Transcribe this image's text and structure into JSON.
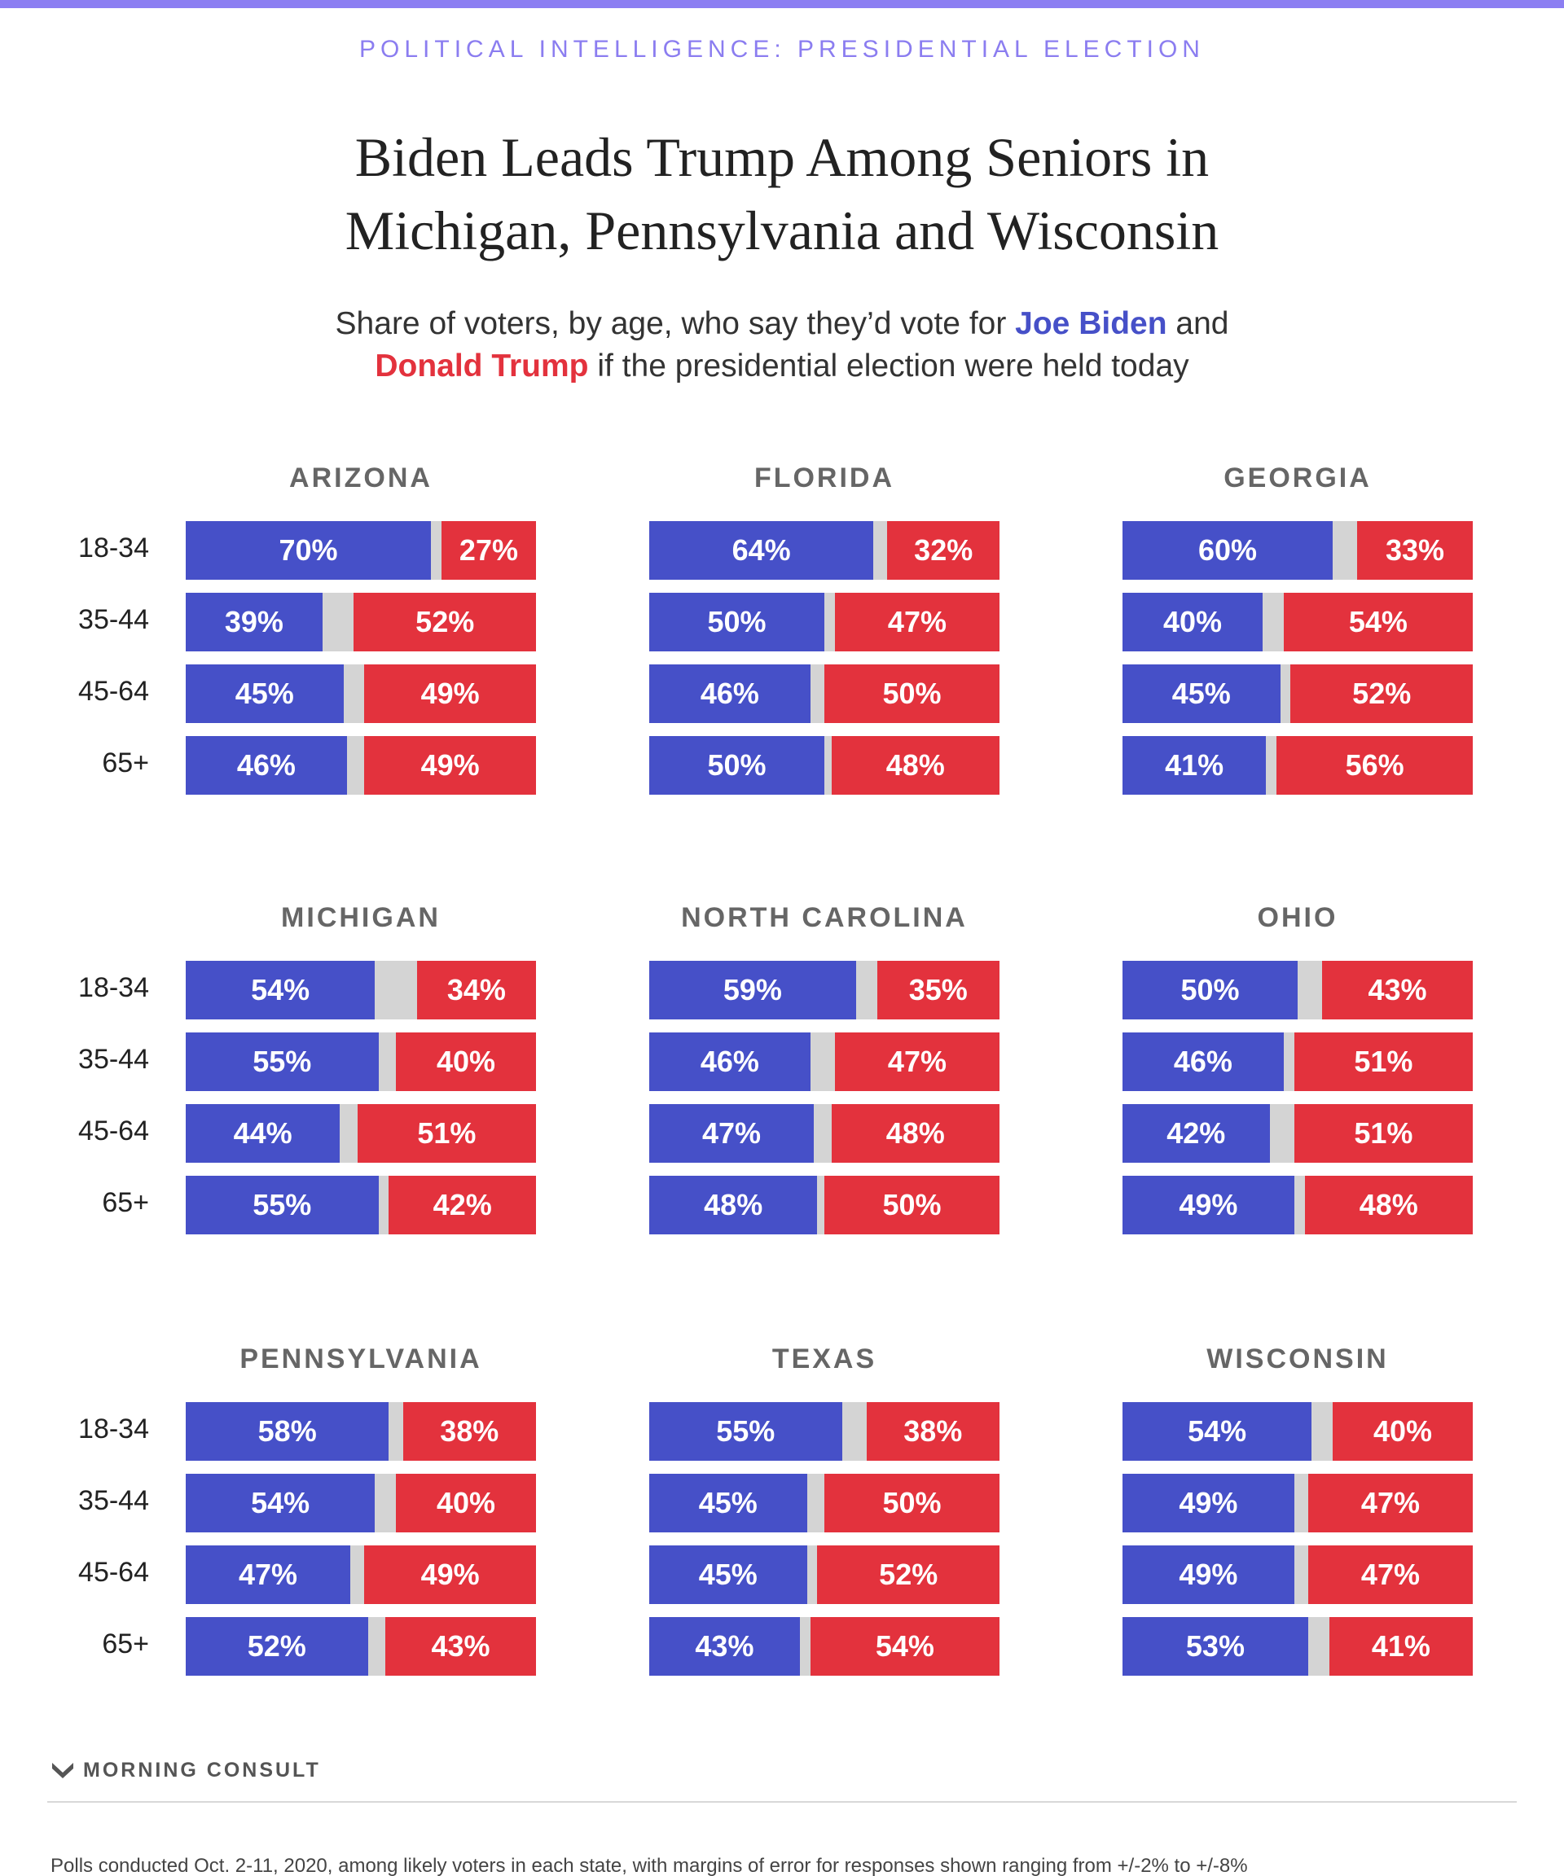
{
  "kicker": "POLITICAL INTELLIGENCE: PRESIDENTIAL ELECTION",
  "title_lines": [
    "Biden Leads Trump Among Seniors in",
    "Michigan, Pennsylvania and Wisconsin"
  ],
  "subtitle": {
    "part1": "Share of voters, by age, who say they’d vote for ",
    "biden": "Joe Biden",
    "part2": " and",
    "trump": "Donald Trump",
    "part3": " if the presidential election were held today"
  },
  "colors": {
    "biden": "#4650c8",
    "trump": "#e3323d",
    "undecided": "#d4d4d4",
    "kicker": "#8b7df0"
  },
  "chart_data": {
    "type": "bar",
    "categories": [
      "18-34",
      "35-44",
      "45-64",
      "65+"
    ],
    "states": [
      {
        "name": "ARIZONA",
        "biden": [
          70,
          39,
          45,
          46
        ],
        "trump": [
          27,
          52,
          49,
          49
        ]
      },
      {
        "name": "FLORIDA",
        "biden": [
          64,
          50,
          46,
          50
        ],
        "trump": [
          32,
          47,
          50,
          48
        ]
      },
      {
        "name": "GEORGIA",
        "biden": [
          60,
          40,
          45,
          41
        ],
        "trump": [
          33,
          54,
          52,
          56
        ]
      },
      {
        "name": "MICHIGAN",
        "biden": [
          54,
          55,
          44,
          55
        ],
        "trump": [
          34,
          40,
          51,
          42
        ]
      },
      {
        "name": "NORTH CAROLINA",
        "biden": [
          59,
          46,
          47,
          48
        ],
        "trump": [
          35,
          47,
          48,
          50
        ]
      },
      {
        "name": "OHIO",
        "biden": [
          50,
          46,
          42,
          49
        ],
        "trump": [
          43,
          51,
          51,
          48
        ]
      },
      {
        "name": "PENNSYLVANIA",
        "biden": [
          58,
          54,
          47,
          52
        ],
        "trump": [
          38,
          40,
          49,
          43
        ]
      },
      {
        "name": "TEXAS",
        "biden": [
          55,
          45,
          45,
          43
        ],
        "trump": [
          38,
          50,
          52,
          54
        ]
      },
      {
        "name": "WISCONSIN",
        "biden": [
          54,
          49,
          49,
          53
        ],
        "trump": [
          40,
          47,
          47,
          41
        ]
      }
    ]
  },
  "logo_text": "MORNING CONSULT",
  "footnote": "Polls conducted Oct. 2-11, 2020, among likely voters in each state, with margins of error for responses shown ranging from +/-2% to +/-8%"
}
